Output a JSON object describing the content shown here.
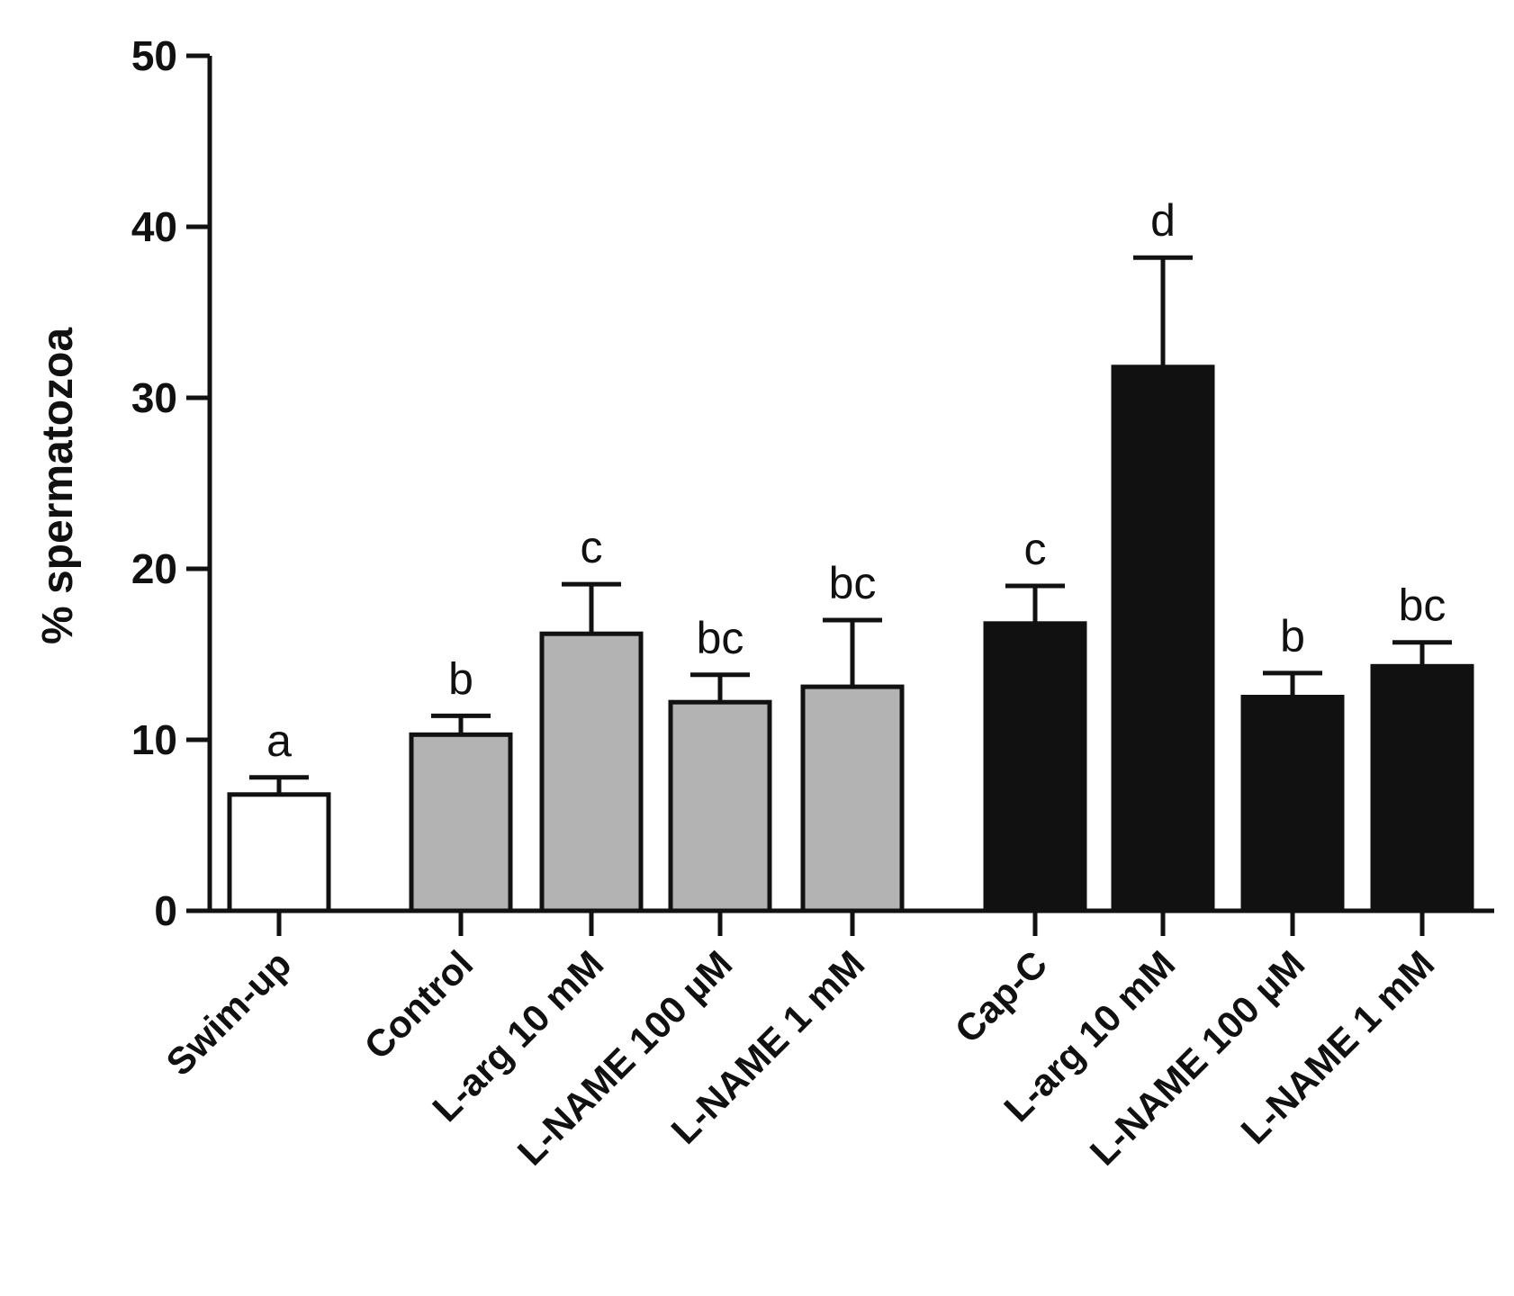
{
  "chart_data": {
    "type": "bar",
    "title": "",
    "xlabel": "",
    "ylabel": "% spermatozoa",
    "ylim": [
      0,
      50
    ],
    "yticks": [
      0,
      10,
      20,
      30,
      40,
      50
    ],
    "categories": [
      "Swim-up",
      "Control",
      "L-arg 10 mM",
      "L-NAME 100 µM",
      "L-NAME 1 mM",
      "Cap-C",
      "L-arg 10 mM",
      "L-NAME 100 µM",
      "L-NAME 1 mM"
    ],
    "values": [
      6.8,
      10.3,
      16.2,
      12.2,
      13.1,
      16.8,
      31.8,
      12.5,
      14.3
    ],
    "error_upper": [
      7.8,
      11.4,
      19.1,
      13.8,
      17.0,
      19.0,
      38.2,
      13.9,
      15.7
    ],
    "significance_letters": [
      "a",
      "b",
      "c",
      "bc",
      "bc",
      "c",
      "d",
      "b",
      "bc"
    ],
    "bar_colors": [
      "#ffffff",
      "#b3b3b3",
      "#b3b3b3",
      "#b3b3b3",
      "#b3b3b3",
      "#111111",
      "#111111",
      "#111111",
      "#111111"
    ],
    "groups": [
      "swim-up",
      "grey",
      "grey",
      "grey",
      "grey",
      "black",
      "black",
      "black",
      "black"
    ],
    "grid": false,
    "legend": "none"
  }
}
